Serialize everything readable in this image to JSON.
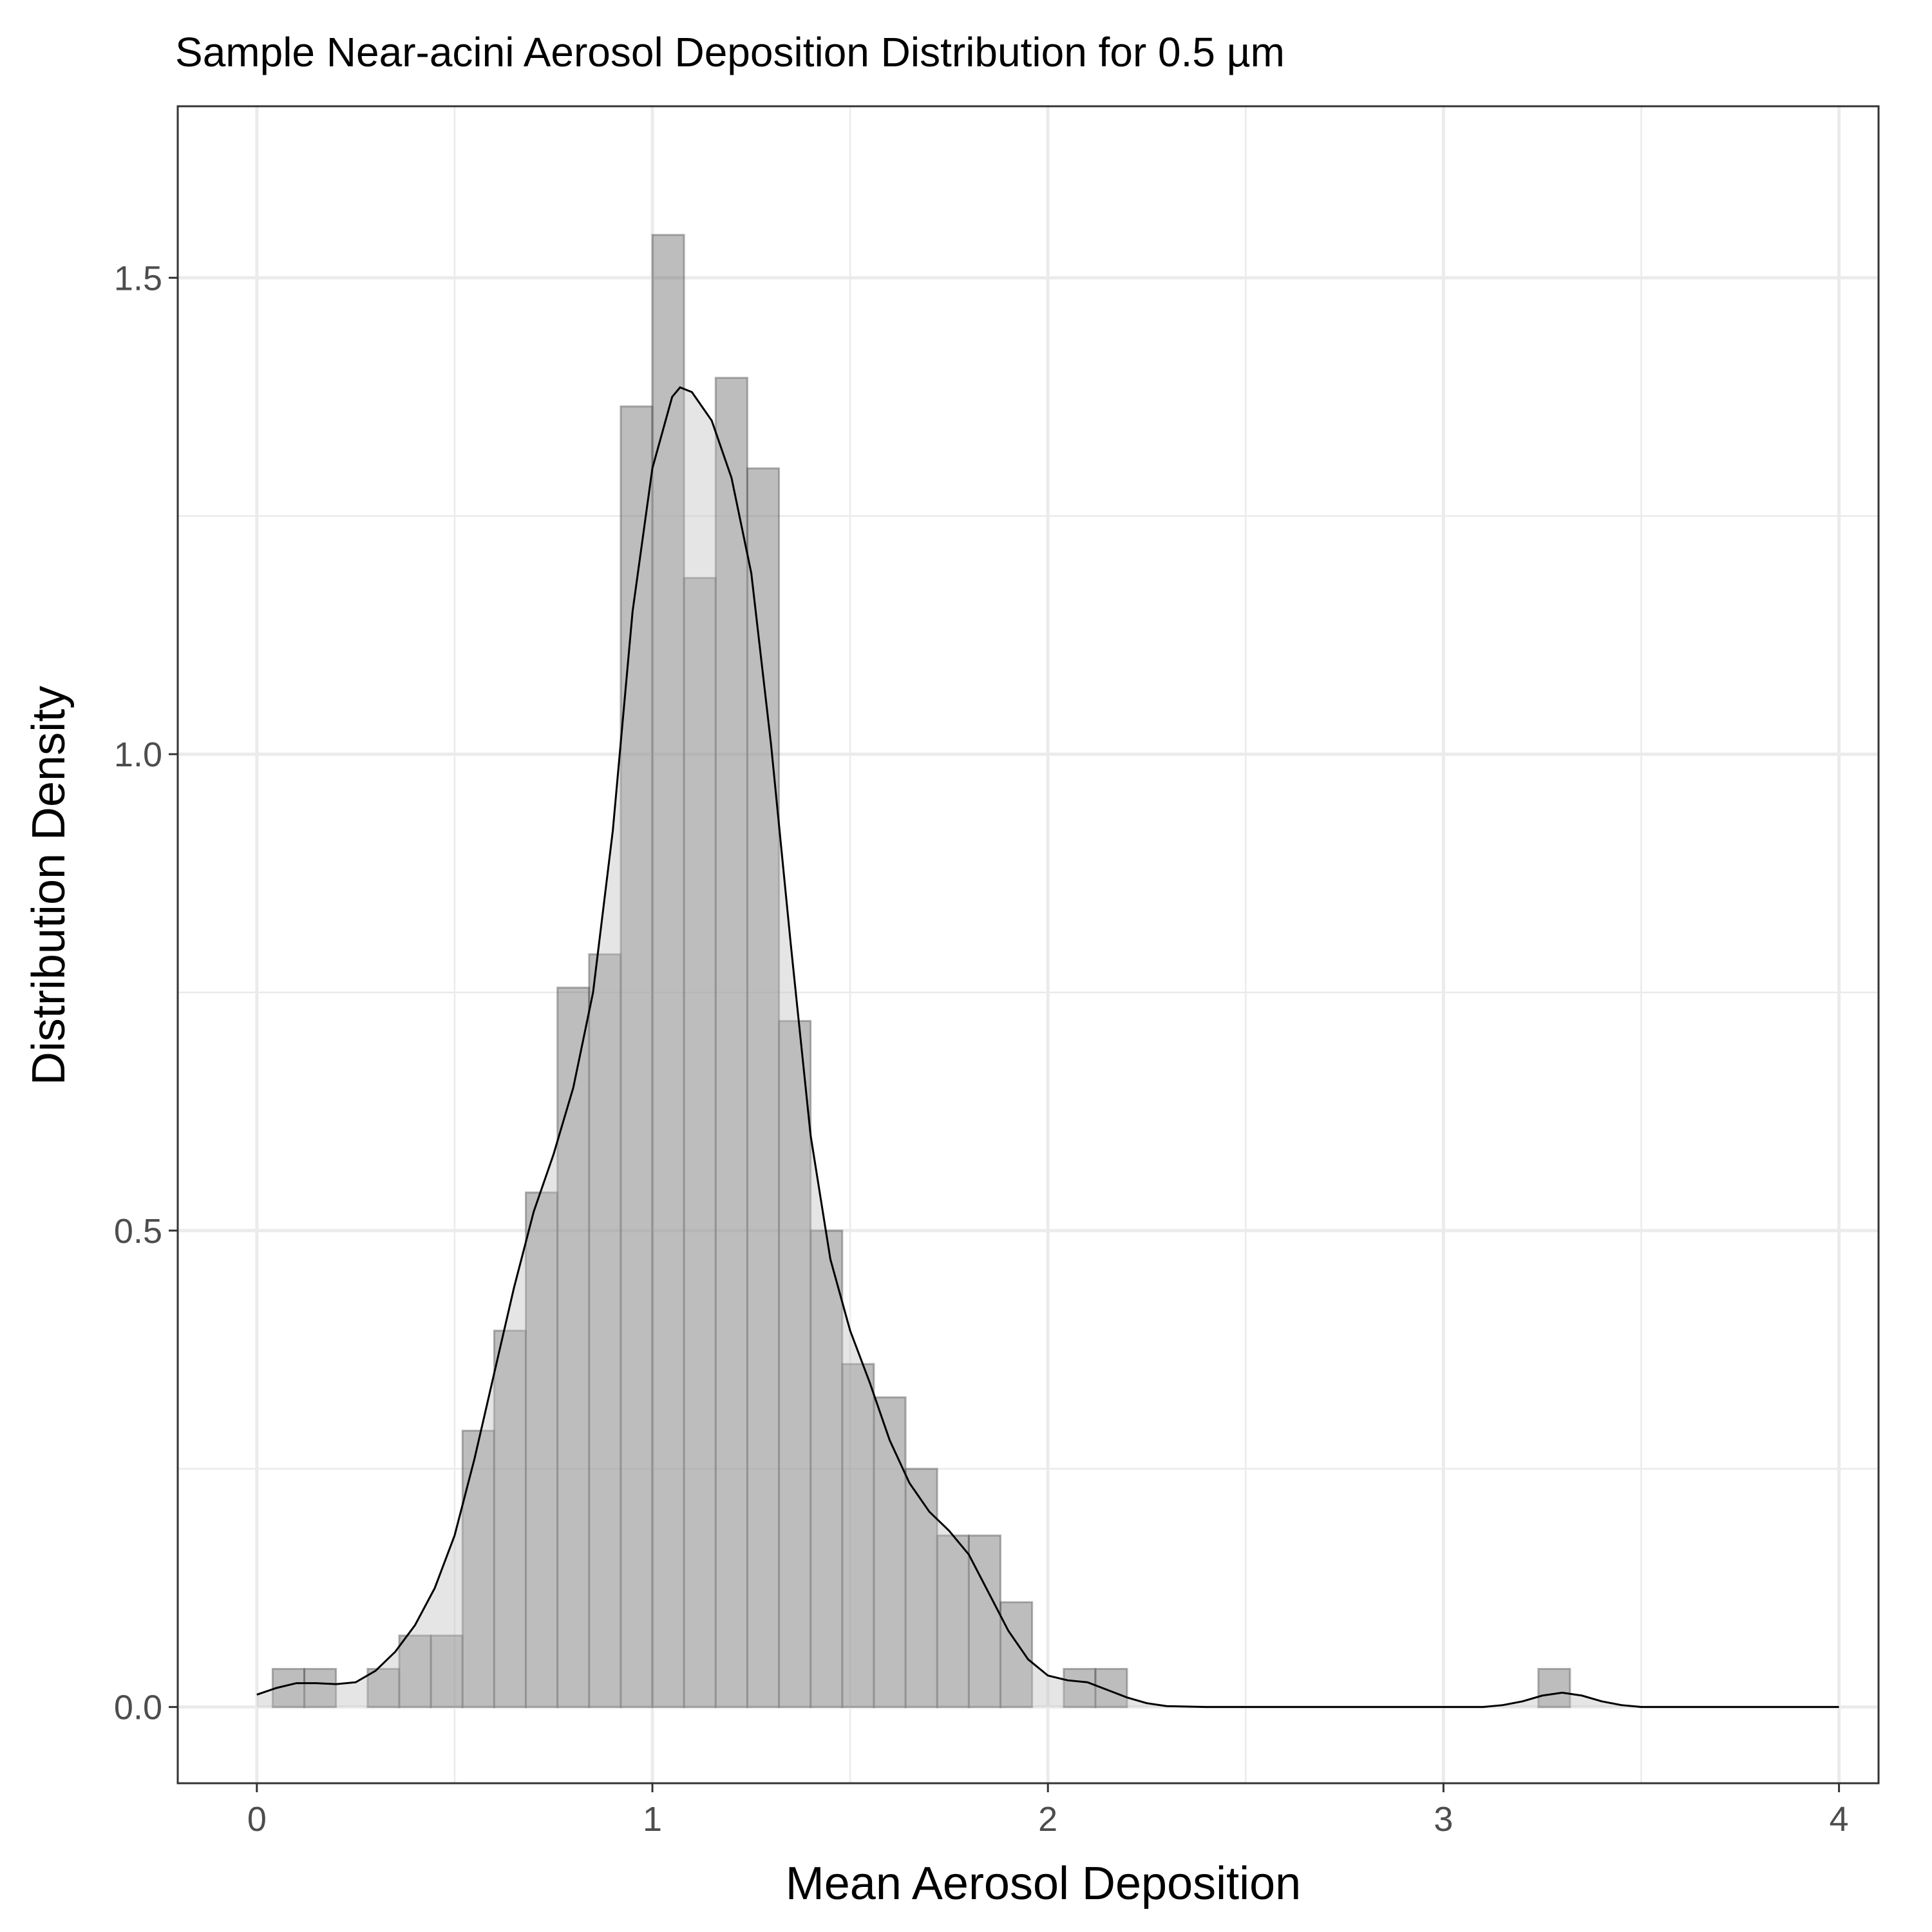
{
  "chart_data": {
    "type": "histogram",
    "title": "Sample Near-acini Aerosol Deposition Distribution for 0.5 µm",
    "xlabel": "Mean Aerosol Deposition",
    "ylabel": "Distribution Density",
    "xlim": [
      -0.2,
      4.1
    ],
    "ylim": [
      -0.08,
      1.68
    ],
    "x_ticks": [
      0,
      1,
      2,
      3,
      4
    ],
    "x_tick_labels": [
      "0",
      "1",
      "2",
      "3",
      "4"
    ],
    "y_ticks": [
      0.0,
      0.5,
      1.0,
      1.5
    ],
    "y_tick_labels": [
      "0.0",
      "0.5",
      "1.0",
      "1.5"
    ],
    "grid": true,
    "bin_width": 0.08,
    "bars": [
      {
        "x0": 0.04,
        "x1": 0.12,
        "y": 0.04
      },
      {
        "x0": 0.12,
        "x1": 0.2,
        "y": 0.04
      },
      {
        "x0": 0.2,
        "x1": 0.28,
        "y": 0.0
      },
      {
        "x0": 0.28,
        "x1": 0.36,
        "y": 0.04
      },
      {
        "x0": 0.36,
        "x1": 0.44,
        "y": 0.075
      },
      {
        "x0": 0.44,
        "x1": 0.52,
        "y": 0.075
      },
      {
        "x0": 0.52,
        "x1": 0.6,
        "y": 0.29
      },
      {
        "x0": 0.6,
        "x1": 0.68,
        "y": 0.395
      },
      {
        "x0": 0.68,
        "x1": 0.76,
        "y": 0.54
      },
      {
        "x0": 0.76,
        "x1": 0.84,
        "y": 0.755
      },
      {
        "x0": 0.84,
        "x1": 0.92,
        "y": 0.79
      },
      {
        "x0": 0.92,
        "x1": 1.0,
        "y": 1.365
      },
      {
        "x0": 1.0,
        "x1": 1.08,
        "y": 1.545
      },
      {
        "x0": 1.08,
        "x1": 1.16,
        "y": 1.185
      },
      {
        "x0": 1.16,
        "x1": 1.24,
        "y": 1.395
      },
      {
        "x0": 1.24,
        "x1": 1.32,
        "y": 1.3
      },
      {
        "x0": 1.32,
        "x1": 1.4,
        "y": 0.72
      },
      {
        "x0": 1.4,
        "x1": 1.48,
        "y": 0.5
      },
      {
        "x0": 1.48,
        "x1": 1.56,
        "y": 0.36
      },
      {
        "x0": 1.56,
        "x1": 1.64,
        "y": 0.325
      },
      {
        "x0": 1.64,
        "x1": 1.72,
        "y": 0.25
      },
      {
        "x0": 1.72,
        "x1": 1.8,
        "y": 0.18
      },
      {
        "x0": 1.8,
        "x1": 1.88,
        "y": 0.18
      },
      {
        "x0": 1.88,
        "x1": 1.96,
        "y": 0.11
      },
      {
        "x0": 1.96,
        "x1": 2.04,
        "y": 0.0
      },
      {
        "x0": 2.04,
        "x1": 2.12,
        "y": 0.04
      },
      {
        "x0": 2.12,
        "x1": 2.2,
        "y": 0.04
      },
      {
        "x0": 3.24,
        "x1": 3.32,
        "y": 0.04
      }
    ],
    "density": [
      [
        0.0,
        0.013
      ],
      [
        0.05,
        0.02
      ],
      [
        0.1,
        0.025
      ],
      [
        0.15,
        0.025
      ],
      [
        0.2,
        0.024
      ],
      [
        0.25,
        0.026
      ],
      [
        0.3,
        0.038
      ],
      [
        0.35,
        0.058
      ],
      [
        0.4,
        0.086
      ],
      [
        0.45,
        0.125
      ],
      [
        0.5,
        0.18
      ],
      [
        0.55,
        0.26
      ],
      [
        0.6,
        0.35
      ],
      [
        0.65,
        0.44
      ],
      [
        0.7,
        0.52
      ],
      [
        0.75,
        0.58
      ],
      [
        0.8,
        0.65
      ],
      [
        0.85,
        0.75
      ],
      [
        0.9,
        0.92
      ],
      [
        0.95,
        1.15
      ],
      [
        1.0,
        1.3
      ],
      [
        1.05,
        1.375
      ],
      [
        1.07,
        1.385
      ],
      [
        1.1,
        1.38
      ],
      [
        1.15,
        1.35
      ],
      [
        1.2,
        1.29
      ],
      [
        1.25,
        1.19
      ],
      [
        1.3,
        1.01
      ],
      [
        1.35,
        0.8
      ],
      [
        1.4,
        0.6
      ],
      [
        1.45,
        0.47
      ],
      [
        1.5,
        0.395
      ],
      [
        1.55,
        0.34
      ],
      [
        1.6,
        0.28
      ],
      [
        1.65,
        0.235
      ],
      [
        1.7,
        0.205
      ],
      [
        1.75,
        0.185
      ],
      [
        1.8,
        0.16
      ],
      [
        1.85,
        0.12
      ],
      [
        1.9,
        0.08
      ],
      [
        1.95,
        0.05
      ],
      [
        2.0,
        0.033
      ],
      [
        2.05,
        0.028
      ],
      [
        2.1,
        0.026
      ],
      [
        2.15,
        0.018
      ],
      [
        2.2,
        0.01
      ],
      [
        2.25,
        0.004
      ],
      [
        2.3,
        0.001
      ],
      [
        2.4,
        0.0
      ],
      [
        2.6,
        0.0
      ],
      [
        2.8,
        0.0
      ],
      [
        3.0,
        0.0
      ],
      [
        3.1,
        0.0
      ],
      [
        3.15,
        0.002
      ],
      [
        3.2,
        0.006
      ],
      [
        3.25,
        0.012
      ],
      [
        3.3,
        0.015
      ],
      [
        3.35,
        0.012
      ],
      [
        3.4,
        0.006
      ],
      [
        3.45,
        0.002
      ],
      [
        3.5,
        0.0
      ],
      [
        3.7,
        0.0
      ],
      [
        4.0,
        0.0
      ]
    ]
  }
}
